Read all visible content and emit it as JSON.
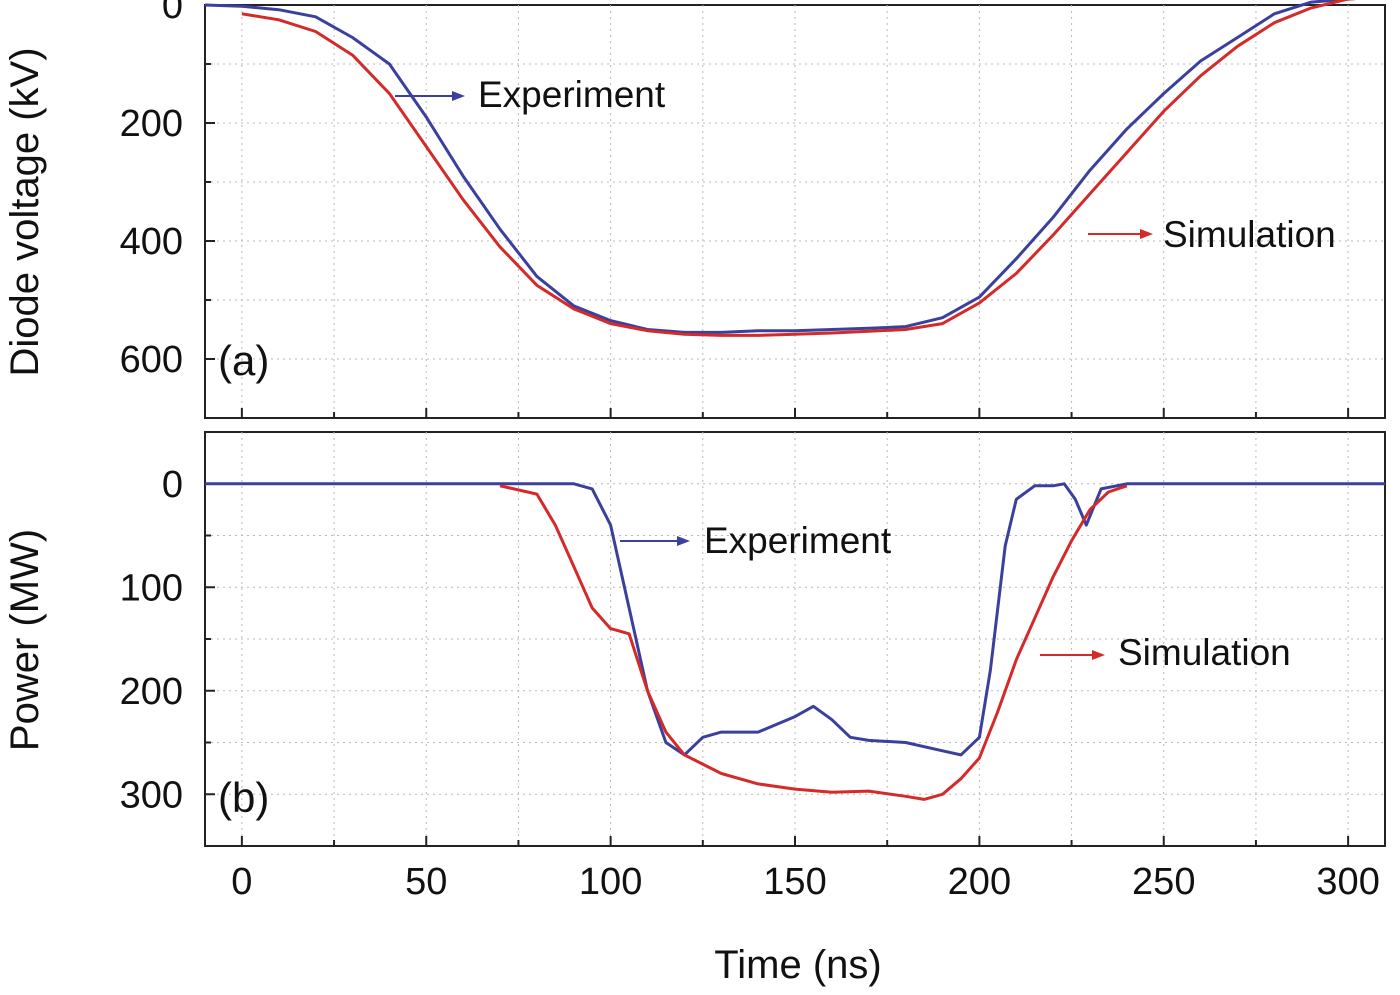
{
  "chart_data": [
    {
      "type": "line",
      "panel_label": "(a)",
      "xlabel": "Time (ns)",
      "ylabel": "Diode voltage (kV)",
      "xlim": [
        -10,
        310
      ],
      "ylim": [
        0,
        700
      ],
      "y_axis_inverted": true,
      "yticks": [
        0,
        200,
        400,
        600
      ],
      "grid": true,
      "colors": {
        "Experiment": "#3b3f9e",
        "Simulation": "#d42a2a"
      },
      "series": [
        {
          "name": "Experiment",
          "x": [
            -10,
            0,
            10,
            20,
            30,
            40,
            50,
            60,
            70,
            80,
            90,
            100,
            110,
            120,
            130,
            140,
            150,
            160,
            170,
            180,
            190,
            200,
            210,
            220,
            230,
            240,
            250,
            260,
            270,
            280,
            290,
            300,
            310
          ],
          "y": [
            0,
            2,
            8,
            20,
            55,
            100,
            190,
            290,
            380,
            460,
            510,
            535,
            550,
            555,
            555,
            552,
            552,
            550,
            548,
            545,
            530,
            495,
            430,
            360,
            280,
            210,
            150,
            95,
            55,
            15,
            -5,
            -10,
            -15
          ]
        },
        {
          "name": "Simulation",
          "x": [
            0,
            10,
            20,
            30,
            40,
            50,
            60,
            70,
            80,
            90,
            100,
            110,
            120,
            130,
            140,
            150,
            160,
            170,
            180,
            190,
            200,
            210,
            220,
            230,
            240,
            250,
            260,
            270,
            280,
            290,
            300,
            310
          ],
          "y": [
            15,
            25,
            45,
            85,
            150,
            240,
            330,
            410,
            475,
            515,
            540,
            552,
            558,
            560,
            560,
            558,
            556,
            553,
            550,
            540,
            505,
            455,
            390,
            320,
            250,
            180,
            120,
            70,
            30,
            5,
            -10,
            -15
          ]
        }
      ],
      "annotations": [
        {
          "text": "Experiment",
          "arrow_color": "#3b3f9e"
        },
        {
          "text": "Simulation",
          "arrow_color": "#d42a2a"
        }
      ]
    },
    {
      "type": "line",
      "panel_label": "(b)",
      "xlabel": "Time (ns)",
      "ylabel": "Power (MW)",
      "xlim": [
        -10,
        310
      ],
      "ylim": [
        -50,
        350
      ],
      "y_axis_inverted": true,
      "yticks": [
        0,
        100,
        200,
        300
      ],
      "xticks": [
        0,
        50,
        100,
        150,
        200,
        250,
        300
      ],
      "grid": true,
      "colors": {
        "Experiment": "#3b3f9e",
        "Simulation": "#d42a2a"
      },
      "series": [
        {
          "name": "Experiment",
          "x": [
            -10,
            0,
            20,
            40,
            60,
            80,
            90,
            95,
            100,
            105,
            110,
            115,
            120,
            125,
            130,
            140,
            150,
            155,
            160,
            165,
            170,
            180,
            190,
            195,
            200,
            203,
            207,
            210,
            215,
            220,
            223,
            226,
            229,
            233,
            240,
            260,
            280,
            310
          ],
          "y": [
            0,
            0,
            0,
            0,
            0,
            0,
            0,
            5,
            40,
            120,
            200,
            250,
            262,
            245,
            240,
            240,
            225,
            215,
            228,
            245,
            248,
            250,
            258,
            262,
            245,
            180,
            60,
            15,
            2,
            2,
            0,
            15,
            40,
            5,
            0,
            0,
            0,
            0
          ]
        },
        {
          "name": "Simulation",
          "x": [
            70,
            80,
            85,
            90,
            95,
            100,
            105,
            110,
            115,
            120,
            130,
            140,
            150,
            160,
            170,
            180,
            185,
            190,
            195,
            200,
            205,
            210,
            215,
            220,
            225,
            230,
            235,
            240
          ],
          "y": [
            2,
            10,
            40,
            80,
            120,
            140,
            145,
            200,
            240,
            262,
            280,
            290,
            295,
            298,
            297,
            302,
            305,
            300,
            285,
            265,
            220,
            170,
            130,
            90,
            55,
            25,
            8,
            2
          ]
        }
      ],
      "annotations": [
        {
          "text": "Experiment",
          "arrow_color": "#3b3f9e"
        },
        {
          "text": "Simulation",
          "arrow_color": "#d42a2a"
        }
      ]
    }
  ]
}
